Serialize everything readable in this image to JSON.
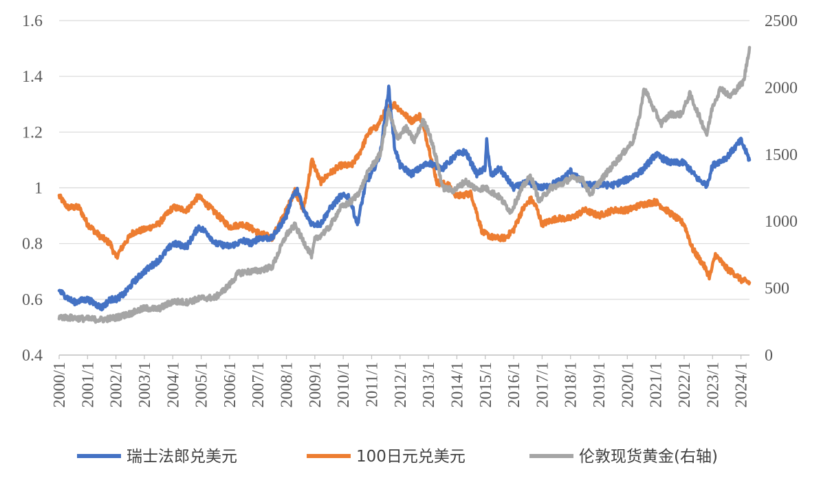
{
  "chart_data": {
    "type": "line",
    "title": "",
    "x_ticks": [
      "2000/1",
      "2001/1",
      "2002/1",
      "2003/1",
      "2004/1",
      "2005/1",
      "2006/1",
      "2007/1",
      "2008/1",
      "2009/1",
      "2010/1",
      "2011/1",
      "2012/1",
      "2013/1",
      "2014/1",
      "2015/1",
      "2016/1",
      "2017/1",
      "2018/1",
      "2019/1",
      "2020/1",
      "2021/1",
      "2022/1",
      "2023/1",
      "2024/1"
    ],
    "x_range": [
      2000.0,
      2024.3
    ],
    "y_left": {
      "ticks": [
        "0.4",
        "0.6",
        "0.8",
        "1",
        "1.2",
        "1.4",
        "1.6"
      ],
      "min": 0.4,
      "max": 1.6
    },
    "y_right": {
      "ticks": [
        "0",
        "500",
        "1000",
        "1500",
        "2000",
        "2500"
      ],
      "min": 0,
      "max": 2500
    },
    "grid": true,
    "legend_position": "bottom",
    "series": [
      {
        "name": "瑞士法郎兑美元",
        "axis": "left",
        "color": "#4472C4",
        "points": [
          [
            2000.0,
            0.63
          ],
          [
            2000.5,
            0.59
          ],
          [
            2001.0,
            0.6
          ],
          [
            2001.5,
            0.57
          ],
          [
            2001.8,
            0.6
          ],
          [
            2002.0,
            0.6
          ],
          [
            2002.3,
            0.62
          ],
          [
            2002.6,
            0.66
          ],
          [
            2003.0,
            0.7
          ],
          [
            2003.5,
            0.74
          ],
          [
            2004.0,
            0.8
          ],
          [
            2004.5,
            0.79
          ],
          [
            2004.9,
            0.86
          ],
          [
            2005.2,
            0.84
          ],
          [
            2005.5,
            0.8
          ],
          [
            2006.0,
            0.79
          ],
          [
            2006.5,
            0.81
          ],
          [
            2006.8,
            0.8
          ],
          [
            2007.0,
            0.82
          ],
          [
            2007.5,
            0.82
          ],
          [
            2008.0,
            0.9
          ],
          [
            2008.2,
            0.97
          ],
          [
            2008.4,
            0.99
          ],
          [
            2008.6,
            0.92
          ],
          [
            2008.9,
            0.87
          ],
          [
            2009.2,
            0.87
          ],
          [
            2009.5,
            0.92
          ],
          [
            2009.9,
            0.97
          ],
          [
            2010.2,
            0.97
          ],
          [
            2010.5,
            0.87
          ],
          [
            2010.8,
            1.02
          ],
          [
            2011.0,
            1.05
          ],
          [
            2011.3,
            1.12
          ],
          [
            2011.6,
            1.36
          ],
          [
            2011.8,
            1.15
          ],
          [
            2012.0,
            1.08
          ],
          [
            2012.4,
            1.05
          ],
          [
            2012.7,
            1.07
          ],
          [
            2013.0,
            1.09
          ],
          [
            2013.5,
            1.07
          ],
          [
            2014.0,
            1.12
          ],
          [
            2014.3,
            1.13
          ],
          [
            2014.7,
            1.05
          ],
          [
            2015.0,
            1.07
          ],
          [
            2015.05,
            1.17
          ],
          [
            2015.2,
            1.04
          ],
          [
            2015.5,
            1.07
          ],
          [
            2016.0,
            1.0
          ],
          [
            2016.5,
            1.02
          ],
          [
            2017.0,
            1.0
          ],
          [
            2017.3,
            1.01
          ],
          [
            2017.7,
            1.03
          ],
          [
            2018.0,
            1.06
          ],
          [
            2018.5,
            1.01
          ],
          [
            2019.0,
            1.01
          ],
          [
            2019.5,
            1.01
          ],
          [
            2020.0,
            1.03
          ],
          [
            2020.5,
            1.06
          ],
          [
            2021.0,
            1.12
          ],
          [
            2021.5,
            1.09
          ],
          [
            2022.0,
            1.09
          ],
          [
            2022.5,
            1.03
          ],
          [
            2022.8,
            1.01
          ],
          [
            2023.0,
            1.08
          ],
          [
            2023.5,
            1.11
          ],
          [
            2024.0,
            1.17
          ],
          [
            2024.3,
            1.1
          ]
        ]
      },
      {
        "name": "100日元兑美元",
        "axis": "left",
        "color": "#ED7D31",
        "points": [
          [
            2000.0,
            0.97
          ],
          [
            2000.3,
            0.93
          ],
          [
            2000.7,
            0.93
          ],
          [
            2001.0,
            0.87
          ],
          [
            2001.4,
            0.83
          ],
          [
            2001.8,
            0.8
          ],
          [
            2002.0,
            0.75
          ],
          [
            2002.3,
            0.8
          ],
          [
            2002.6,
            0.84
          ],
          [
            2003.0,
            0.85
          ],
          [
            2003.5,
            0.87
          ],
          [
            2004.0,
            0.93
          ],
          [
            2004.5,
            0.92
          ],
          [
            2004.9,
            0.97
          ],
          [
            2005.3,
            0.93
          ],
          [
            2005.7,
            0.89
          ],
          [
            2006.0,
            0.86
          ],
          [
            2006.5,
            0.87
          ],
          [
            2007.0,
            0.84
          ],
          [
            2007.5,
            0.82
          ],
          [
            2008.0,
            0.92
          ],
          [
            2008.3,
            0.99
          ],
          [
            2008.6,
            0.92
          ],
          [
            2008.9,
            1.1
          ],
          [
            2009.2,
            1.02
          ],
          [
            2009.5,
            1.05
          ],
          [
            2009.9,
            1.08
          ],
          [
            2010.3,
            1.08
          ],
          [
            2010.6,
            1.13
          ],
          [
            2010.9,
            1.2
          ],
          [
            2011.2,
            1.22
          ],
          [
            2011.5,
            1.28
          ],
          [
            2011.8,
            1.3
          ],
          [
            2012.0,
            1.28
          ],
          [
            2012.4,
            1.24
          ],
          [
            2012.7,
            1.26
          ],
          [
            2013.0,
            1.15
          ],
          [
            2013.3,
            1.02
          ],
          [
            2013.7,
            1.01
          ],
          [
            2014.0,
            0.97
          ],
          [
            2014.5,
            0.98
          ],
          [
            2014.9,
            0.84
          ],
          [
            2015.3,
            0.82
          ],
          [
            2015.7,
            0.82
          ],
          [
            2016.0,
            0.85
          ],
          [
            2016.3,
            0.92
          ],
          [
            2016.6,
            0.96
          ],
          [
            2016.8,
            0.93
          ],
          [
            2017.0,
            0.87
          ],
          [
            2017.5,
            0.89
          ],
          [
            2018.0,
            0.89
          ],
          [
            2018.5,
            0.92
          ],
          [
            2019.0,
            0.9
          ],
          [
            2019.5,
            0.92
          ],
          [
            2020.0,
            0.92
          ],
          [
            2020.5,
            0.94
          ],
          [
            2021.0,
            0.95
          ],
          [
            2021.5,
            0.91
          ],
          [
            2022.0,
            0.87
          ],
          [
            2022.3,
            0.78
          ],
          [
            2022.7,
            0.72
          ],
          [
            2022.9,
            0.68
          ],
          [
            2023.1,
            0.76
          ],
          [
            2023.5,
            0.71
          ],
          [
            2023.8,
            0.69
          ],
          [
            2024.0,
            0.67
          ],
          [
            2024.3,
            0.66
          ]
        ]
      },
      {
        "name": "伦敦现货黄金(右轴)",
        "axis": "right",
        "color": "#A5A5A5",
        "points": [
          [
            2000.0,
            285
          ],
          [
            2001.0,
            270
          ],
          [
            2001.5,
            265
          ],
          [
            2002.0,
            280
          ],
          [
            2002.5,
            310
          ],
          [
            2003.0,
            350
          ],
          [
            2003.5,
            345
          ],
          [
            2004.0,
            400
          ],
          [
            2004.5,
            395
          ],
          [
            2005.0,
            425
          ],
          [
            2005.5,
            430
          ],
          [
            2006.0,
            525
          ],
          [
            2006.3,
            610
          ],
          [
            2006.5,
            620
          ],
          [
            2007.0,
            630
          ],
          [
            2007.5,
            660
          ],
          [
            2008.0,
            900
          ],
          [
            2008.3,
            970
          ],
          [
            2008.6,
            850
          ],
          [
            2008.9,
            740
          ],
          [
            2009.0,
            860
          ],
          [
            2009.5,
            950
          ],
          [
            2009.9,
            1100
          ],
          [
            2010.3,
            1150
          ],
          [
            2010.6,
            1230
          ],
          [
            2010.9,
            1380
          ],
          [
            2011.3,
            1500
          ],
          [
            2011.6,
            1830
          ],
          [
            2011.9,
            1620
          ],
          [
            2012.2,
            1700
          ],
          [
            2012.5,
            1600
          ],
          [
            2012.8,
            1750
          ],
          [
            2013.0,
            1680
          ],
          [
            2013.3,
            1450
          ],
          [
            2013.5,
            1250
          ],
          [
            2013.9,
            1230
          ],
          [
            2014.3,
            1300
          ],
          [
            2014.7,
            1240
          ],
          [
            2015.0,
            1250
          ],
          [
            2015.5,
            1180
          ],
          [
            2015.9,
            1070
          ],
          [
            2016.3,
            1250
          ],
          [
            2016.6,
            1340
          ],
          [
            2016.9,
            1150
          ],
          [
            2017.3,
            1250
          ],
          [
            2017.7,
            1280
          ],
          [
            2018.0,
            1320
          ],
          [
            2018.4,
            1320
          ],
          [
            2018.7,
            1200
          ],
          [
            2019.0,
            1290
          ],
          [
            2019.5,
            1420
          ],
          [
            2019.9,
            1520
          ],
          [
            2020.2,
            1600
          ],
          [
            2020.4,
            1750
          ],
          [
            2020.6,
            2000
          ],
          [
            2020.9,
            1850
          ],
          [
            2021.2,
            1730
          ],
          [
            2021.5,
            1800
          ],
          [
            2021.9,
            1800
          ],
          [
            2022.2,
            1950
          ],
          [
            2022.5,
            1800
          ],
          [
            2022.8,
            1650
          ],
          [
            2023.0,
            1860
          ],
          [
            2023.3,
            2000
          ],
          [
            2023.6,
            1930
          ],
          [
            2023.9,
            2000
          ],
          [
            2024.1,
            2050
          ],
          [
            2024.3,
            2300
          ]
        ]
      }
    ]
  }
}
